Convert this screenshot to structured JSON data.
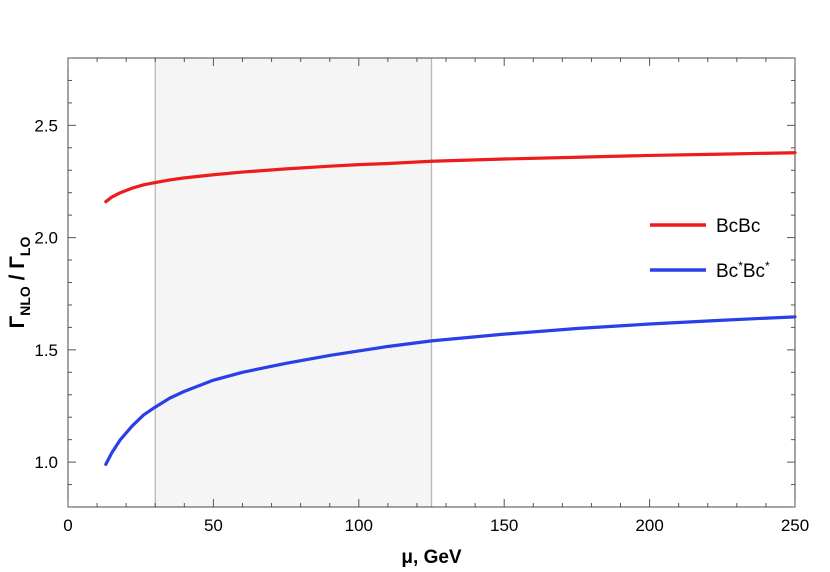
{
  "chart_data": {
    "type": "line",
    "title": "",
    "xlabel": "μ, GeV",
    "ylabel": {
      "main": "Γ",
      "sub1": "NLO",
      "sep": " / ",
      "sub2": "LO"
    },
    "xlim": [
      0,
      250
    ],
    "ylim": [
      0.8,
      2.8
    ],
    "xticks": [
      0,
      50,
      100,
      150,
      200,
      250
    ],
    "xtick_labels": [
      "0",
      "50",
      "100",
      "150",
      "200",
      "250"
    ],
    "yticks": [
      1.0,
      1.5,
      2.0,
      2.5
    ],
    "ytick_labels": [
      "1.0",
      "1.5",
      "2.0",
      "2.5"
    ],
    "shaded_region": {
      "x": [
        30,
        125
      ],
      "color": "#f5f5f5",
      "edge_color": "#b8b8b8"
    },
    "grid": false,
    "legend_position": "right",
    "series": [
      {
        "name": "BcBc",
        "legend_label": {
          "a": "BcBc"
        },
        "color": "#ee1c1c",
        "x": [
          13,
          15,
          18,
          22,
          26,
          30,
          35,
          40,
          50,
          60,
          75,
          90,
          100,
          110,
          125,
          150,
          175,
          200,
          225,
          250
        ],
        "y": [
          2.16,
          2.18,
          2.2,
          2.22,
          2.235,
          2.245,
          2.257,
          2.266,
          2.28,
          2.292,
          2.306,
          2.318,
          2.325,
          2.33,
          2.34,
          2.35,
          2.358,
          2.366,
          2.372,
          2.378
        ]
      },
      {
        "name": "Bc*Bc*",
        "legend_label": {
          "a": "Bc",
          "b": "*",
          "c": "Bc",
          "d": "*"
        },
        "color": "#2a3fe8",
        "x": [
          13,
          15,
          18,
          22,
          26,
          30,
          35,
          40,
          50,
          60,
          75,
          90,
          100,
          110,
          125,
          150,
          175,
          200,
          225,
          250
        ],
        "y": [
          0.99,
          1.04,
          1.1,
          1.16,
          1.21,
          1.245,
          1.285,
          1.315,
          1.365,
          1.4,
          1.44,
          1.475,
          1.495,
          1.515,
          1.54,
          1.57,
          1.595,
          1.615,
          1.632,
          1.647
        ]
      }
    ]
  }
}
